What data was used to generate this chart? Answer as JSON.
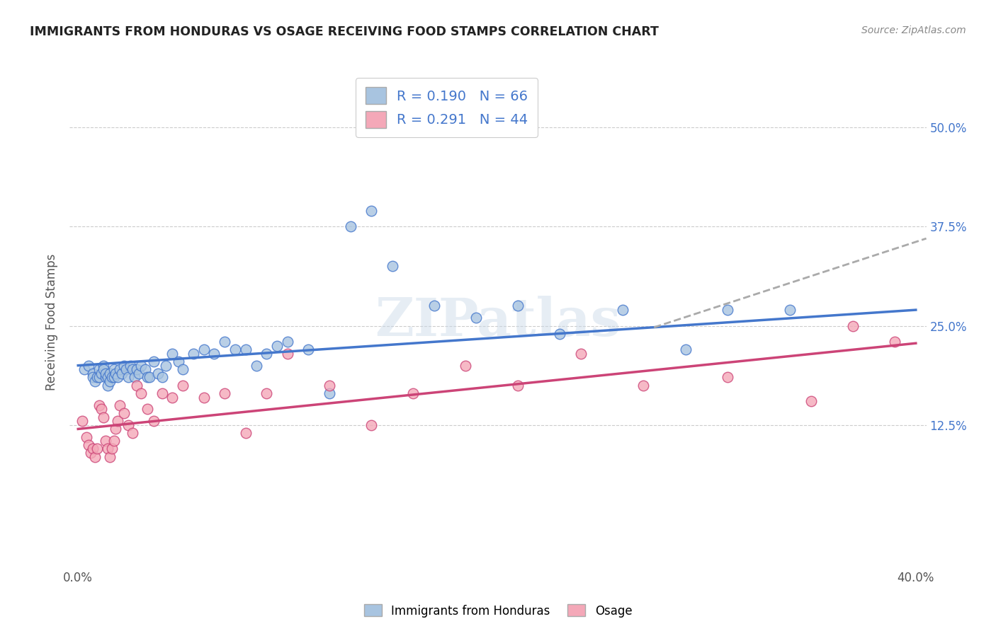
{
  "title": "IMMIGRANTS FROM HONDURAS VS OSAGE RECEIVING FOOD STAMPS CORRELATION CHART",
  "source": "Source: ZipAtlas.com",
  "ylabel": "Receiving Food Stamps",
  "ytick_vals": [
    0.125,
    0.25,
    0.375,
    0.5
  ],
  "ytick_labels": [
    "12.5%",
    "25.0%",
    "37.5%",
    "50.0%"
  ],
  "xlim": [
    -0.004,
    0.405
  ],
  "ylim": [
    -0.055,
    0.565
  ],
  "watermark": "ZIPatlas",
  "color_blue": "#a8c4e0",
  "color_pink": "#f4a8b8",
  "line_blue": "#4477cc",
  "line_pink": "#cc4477",
  "line_dashed": "#aaaaaa",
  "blue_scatter_x": [
    0.003,
    0.005,
    0.007,
    0.007,
    0.008,
    0.009,
    0.01,
    0.01,
    0.011,
    0.012,
    0.012,
    0.013,
    0.013,
    0.014,
    0.014,
    0.015,
    0.015,
    0.016,
    0.017,
    0.017,
    0.018,
    0.019,
    0.02,
    0.021,
    0.022,
    0.023,
    0.024,
    0.025,
    0.026,
    0.027,
    0.028,
    0.029,
    0.03,
    0.032,
    0.033,
    0.034,
    0.036,
    0.038,
    0.04,
    0.042,
    0.045,
    0.048,
    0.05,
    0.055,
    0.06,
    0.065,
    0.07,
    0.075,
    0.08,
    0.085,
    0.09,
    0.095,
    0.1,
    0.11,
    0.12,
    0.13,
    0.14,
    0.15,
    0.17,
    0.19,
    0.21,
    0.23,
    0.26,
    0.29,
    0.31,
    0.34
  ],
  "blue_scatter_y": [
    0.195,
    0.2,
    0.19,
    0.185,
    0.18,
    0.185,
    0.195,
    0.185,
    0.19,
    0.2,
    0.195,
    0.185,
    0.19,
    0.185,
    0.175,
    0.19,
    0.18,
    0.185,
    0.195,
    0.185,
    0.19,
    0.185,
    0.195,
    0.19,
    0.2,
    0.195,
    0.185,
    0.2,
    0.195,
    0.185,
    0.195,
    0.19,
    0.2,
    0.195,
    0.185,
    0.185,
    0.205,
    0.19,
    0.185,
    0.2,
    0.215,
    0.205,
    0.195,
    0.215,
    0.22,
    0.215,
    0.23,
    0.22,
    0.22,
    0.2,
    0.215,
    0.225,
    0.23,
    0.22,
    0.165,
    0.375,
    0.395,
    0.325,
    0.275,
    0.26,
    0.275,
    0.24,
    0.27,
    0.22,
    0.27,
    0.27
  ],
  "pink_scatter_x": [
    0.002,
    0.004,
    0.005,
    0.006,
    0.007,
    0.008,
    0.009,
    0.01,
    0.011,
    0.012,
    0.013,
    0.014,
    0.015,
    0.016,
    0.017,
    0.018,
    0.019,
    0.02,
    0.022,
    0.024,
    0.026,
    0.028,
    0.03,
    0.033,
    0.036,
    0.04,
    0.045,
    0.05,
    0.06,
    0.07,
    0.08,
    0.09,
    0.1,
    0.12,
    0.14,
    0.16,
    0.185,
    0.21,
    0.24,
    0.27,
    0.31,
    0.35,
    0.37,
    0.39
  ],
  "pink_scatter_y": [
    0.13,
    0.11,
    0.1,
    0.09,
    0.095,
    0.085,
    0.095,
    0.15,
    0.145,
    0.135,
    0.105,
    0.095,
    0.085,
    0.095,
    0.105,
    0.12,
    0.13,
    0.15,
    0.14,
    0.125,
    0.115,
    0.175,
    0.165,
    0.145,
    0.13,
    0.165,
    0.16,
    0.175,
    0.16,
    0.165,
    0.115,
    0.165,
    0.215,
    0.175,
    0.125,
    0.165,
    0.2,
    0.175,
    0.215,
    0.175,
    0.185,
    0.155,
    0.25,
    0.23
  ],
  "blue_line_x": [
    0.0,
    0.4
  ],
  "blue_line_y": [
    0.2,
    0.27
  ],
  "pink_line_x": [
    0.0,
    0.4
  ],
  "pink_line_y": [
    0.12,
    0.228
  ],
  "dashed_line_x": [
    0.275,
    0.405
  ],
  "dashed_line_y": [
    0.248,
    0.36
  ]
}
